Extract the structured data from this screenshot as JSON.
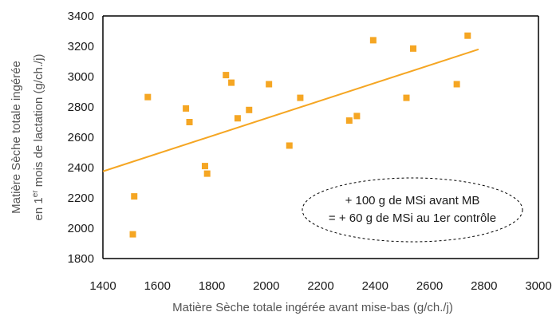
{
  "chart_data": {
    "type": "scatter",
    "xlabel": "Matière Sèche totale ingérée avant mise-bas (g/ch./j)",
    "ylabel_line1": "Matière Sèche totale ingérée",
    "ylabel_line2_prefix": "en 1",
    "ylabel_line2_sup": "er",
    "ylabel_line2_suffix": " mois de lactation (g/ch./j)",
    "xlim": [
      1400,
      3000
    ],
    "ylim": [
      1800,
      3400
    ],
    "x_ticks": [
      1400,
      1600,
      1800,
      2000,
      2200,
      2400,
      2600,
      2800,
      3000
    ],
    "y_ticks": [
      1800,
      2000,
      2200,
      2400,
      2600,
      2800,
      3000,
      3200,
      3400
    ],
    "grid": false,
    "points": [
      {
        "x": 1510,
        "y": 1960
      },
      {
        "x": 1515,
        "y": 2210
      },
      {
        "x": 1565,
        "y": 2865
      },
      {
        "x": 1705,
        "y": 2790
      },
      {
        "x": 1718,
        "y": 2700
      },
      {
        "x": 1775,
        "y": 2410
      },
      {
        "x": 1783,
        "y": 2360
      },
      {
        "x": 1852,
        "y": 3010
      },
      {
        "x": 1872,
        "y": 2960
      },
      {
        "x": 1895,
        "y": 2725
      },
      {
        "x": 1937,
        "y": 2780
      },
      {
        "x": 2010,
        "y": 2950
      },
      {
        "x": 2085,
        "y": 2545
      },
      {
        "x": 2125,
        "y": 2860
      },
      {
        "x": 2305,
        "y": 2710
      },
      {
        "x": 2333,
        "y": 2740
      },
      {
        "x": 2393,
        "y": 3240
      },
      {
        "x": 2515,
        "y": 2860
      },
      {
        "x": 2540,
        "y": 3185
      },
      {
        "x": 2700,
        "y": 2950
      },
      {
        "x": 2740,
        "y": 3270
      }
    ],
    "trendline": {
      "x": [
        1400,
        2780
      ],
      "y": [
        2375,
        3180
      ]
    },
    "annotation": {
      "line1": "+ 100 g de MSi avant MB",
      "line2": "= + 60 g de MSi au 1er contrôle"
    },
    "colors": {
      "points": "#f5a623",
      "trendline": "#f5a623",
      "axis": "#000000"
    }
  }
}
